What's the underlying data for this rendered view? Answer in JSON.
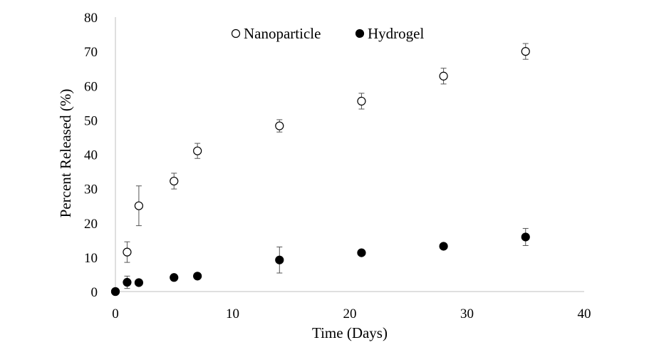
{
  "chart_data": {
    "type": "scatter",
    "xlabel": "Time (Days)",
    "ylabel": "Percent Released (%)",
    "xlim": [
      0,
      40
    ],
    "ylim": [
      0,
      80
    ],
    "x_ticks": [
      0,
      10,
      20,
      30,
      40
    ],
    "y_ticks": [
      0,
      10,
      20,
      30,
      40,
      50,
      60,
      70,
      80
    ],
    "grid": false,
    "legend_position": "top",
    "series": [
      {
        "name": "Nanoparticle",
        "marker": "open-circle",
        "color": "#000000",
        "points": [
          {
            "x": 0,
            "y": 0,
            "err": 0
          },
          {
            "x": 1,
            "y": 11.5,
            "err": 3
          },
          {
            "x": 2,
            "y": 25,
            "err": 5.8
          },
          {
            "x": 5,
            "y": 32.2,
            "err": 2.3
          },
          {
            "x": 7,
            "y": 41,
            "err": 2.2
          },
          {
            "x": 14,
            "y": 48.3,
            "err": 1.8
          },
          {
            "x": 21,
            "y": 55.5,
            "err": 2.3
          },
          {
            "x": 28,
            "y": 62.8,
            "err": 2.3
          },
          {
            "x": 35,
            "y": 70,
            "err": 2.3
          }
        ]
      },
      {
        "name": "Hydrogel",
        "marker": "filled-circle",
        "color": "#000000",
        "points": [
          {
            "x": 0,
            "y": 0,
            "err": 0
          },
          {
            "x": 1,
            "y": 2.7,
            "err": 1.8
          },
          {
            "x": 2,
            "y": 2.6,
            "err": 0.5
          },
          {
            "x": 5,
            "y": 4.1,
            "err": 0.5
          },
          {
            "x": 7,
            "y": 4.5,
            "err": 0.4
          },
          {
            "x": 14,
            "y": 9.2,
            "err": 3.8
          },
          {
            "x": 21,
            "y": 11.3,
            "err": 0.8
          },
          {
            "x": 28,
            "y": 13.2,
            "err": 0.5
          },
          {
            "x": 35,
            "y": 15.9,
            "err": 2.5
          }
        ]
      }
    ]
  }
}
